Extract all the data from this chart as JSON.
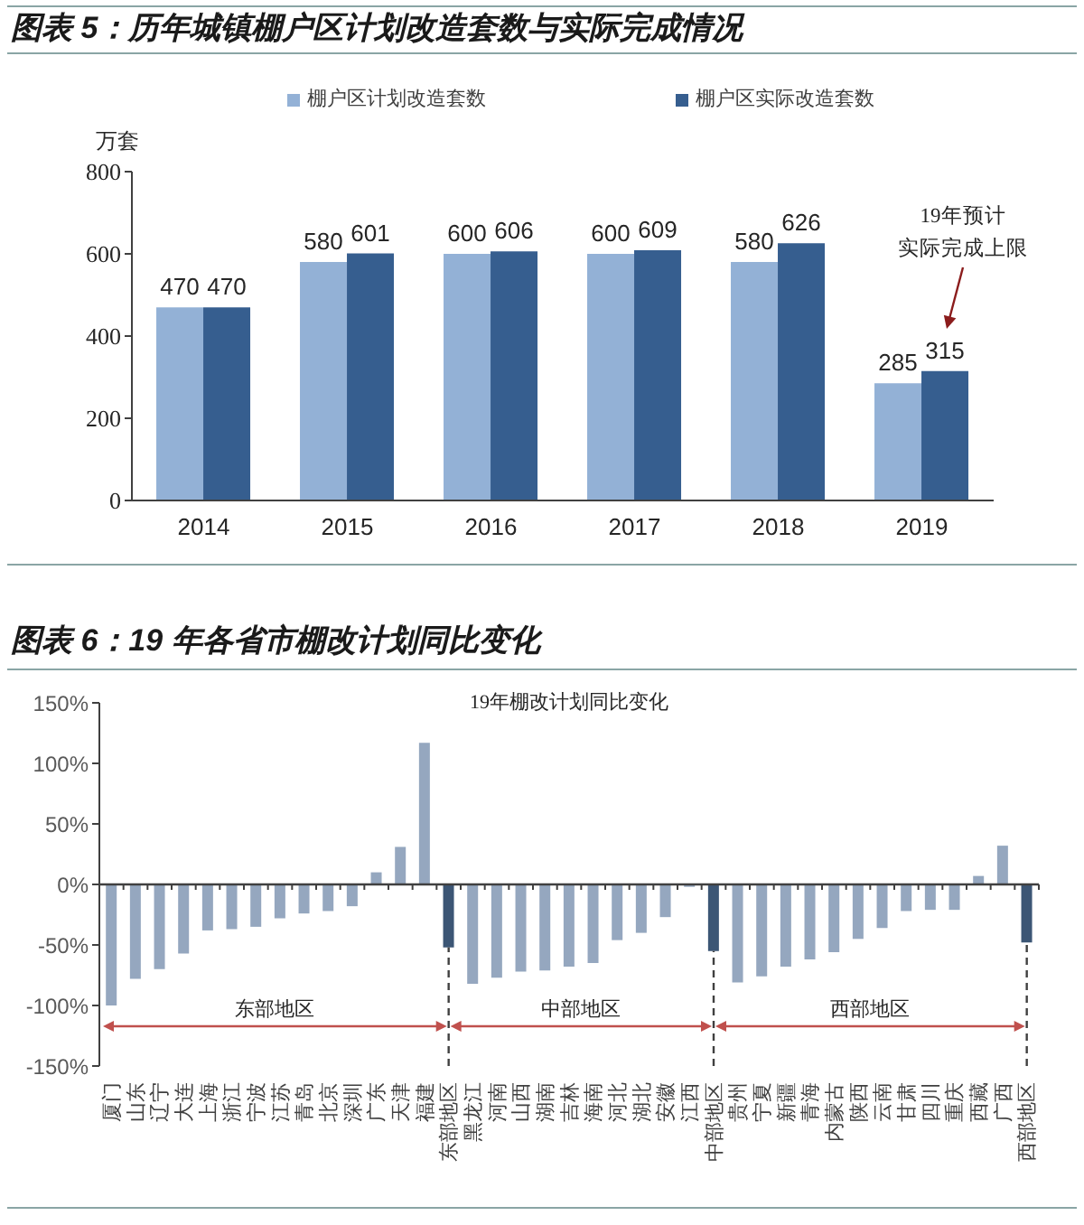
{
  "chart_data": [
    {
      "type": "bar",
      "title": "图表 5：历年城镇棚户区计划改造套数与实际完成情况",
      "ylabel": "万套",
      "categories": [
        "2014",
        "2015",
        "2016",
        "2017",
        "2018",
        "2019"
      ],
      "series": [
        {
          "name": "棚户区计划改造套数",
          "color": "#93b1d6",
          "values": [
            470,
            580,
            600,
            600,
            580,
            285
          ]
        },
        {
          "name": "棚户区实际改造套数",
          "color": "#365e8f",
          "values": [
            470,
            601,
            606,
            609,
            626,
            315
          ]
        }
      ],
      "ylim": [
        0,
        800
      ],
      "yticks": [
        0,
        200,
        400,
        600,
        800
      ],
      "data_labels": true,
      "legend": "top",
      "annotations": [
        "19年预计实际完成上限"
      ]
    },
    {
      "type": "bar",
      "title": "图表 6：19 年各省市棚改计划同比变化",
      "subtitle": "19年棚改计划同比变化",
      "categories": [
        "厦门",
        "山东",
        "辽宁",
        "大连",
        "上海",
        "浙江",
        "宁波",
        "江苏",
        "青岛",
        "北京",
        "深圳",
        "广东",
        "天津",
        "福建",
        "东部地区",
        "黑龙江",
        "河南",
        "山西",
        "湖南",
        "吉林",
        "海南",
        "河北",
        "湖北",
        "安徽",
        "江西",
        "中部地区",
        "贵州",
        "宁夏",
        "新疆",
        "青海",
        "内蒙古",
        "陕西",
        "云南",
        "甘肃",
        "四川",
        "重庆",
        "西藏",
        "广西",
        "西部地区"
      ],
      "values": [
        -100,
        -78,
        -70,
        -57,
        -38,
        -37,
        -35,
        -28,
        -24,
        -22,
        -18,
        10,
        31,
        117,
        -52,
        -82,
        -77,
        -72,
        -71,
        -68,
        -65,
        -46,
        -40,
        -27,
        -2,
        -55,
        -81,
        -76,
        -68,
        -62,
        -56,
        -45,
        -36,
        -22,
        -21,
        -21,
        7,
        32,
        -48
      ],
      "colors": [
        "#95a7bf",
        "#95a7bf",
        "#95a7bf",
        "#95a7bf",
        "#95a7bf",
        "#95a7bf",
        "#95a7bf",
        "#95a7bf",
        "#95a7bf",
        "#95a7bf",
        "#95a7bf",
        "#95a7bf",
        "#95a7bf",
        "#95a7bf",
        "#3c5675",
        "#95a7bf",
        "#95a7bf",
        "#95a7bf",
        "#95a7bf",
        "#95a7bf",
        "#95a7bf",
        "#95a7bf",
        "#95a7bf",
        "#95a7bf",
        "#95a7bf",
        "#3c5675",
        "#95a7bf",
        "#95a7bf",
        "#95a7bf",
        "#95a7bf",
        "#95a7bf",
        "#95a7bf",
        "#95a7bf",
        "#95a7bf",
        "#95a7bf",
        "#95a7bf",
        "#95a7bf",
        "#95a7bf",
        "#3c5675"
      ],
      "ylim": [
        -150,
        150
      ],
      "yticks": [
        {
          "value": -150,
          "label": "-150%"
        },
        {
          "value": -100,
          "label": "-100%"
        },
        {
          "value": -50,
          "label": "-50%"
        },
        {
          "value": 0,
          "label": "0%"
        },
        {
          "value": 50,
          "label": "50%"
        },
        {
          "value": 100,
          "label": "100%"
        },
        {
          "value": 150,
          "label": "150%"
        }
      ],
      "ref_lines": [
        {
          "axis": "x",
          "value": "东部地区",
          "color": "#404040",
          "line_style": "dashed"
        },
        {
          "axis": "x",
          "value": "中部地区",
          "color": "#404040",
          "line_style": "dashed"
        },
        {
          "axis": "x",
          "value": "西部地区",
          "color": "#404040",
          "line_style": "dashed"
        }
      ],
      "annotations": [
        "东部地区",
        "中部地区",
        "西部地区"
      ]
    }
  ]
}
